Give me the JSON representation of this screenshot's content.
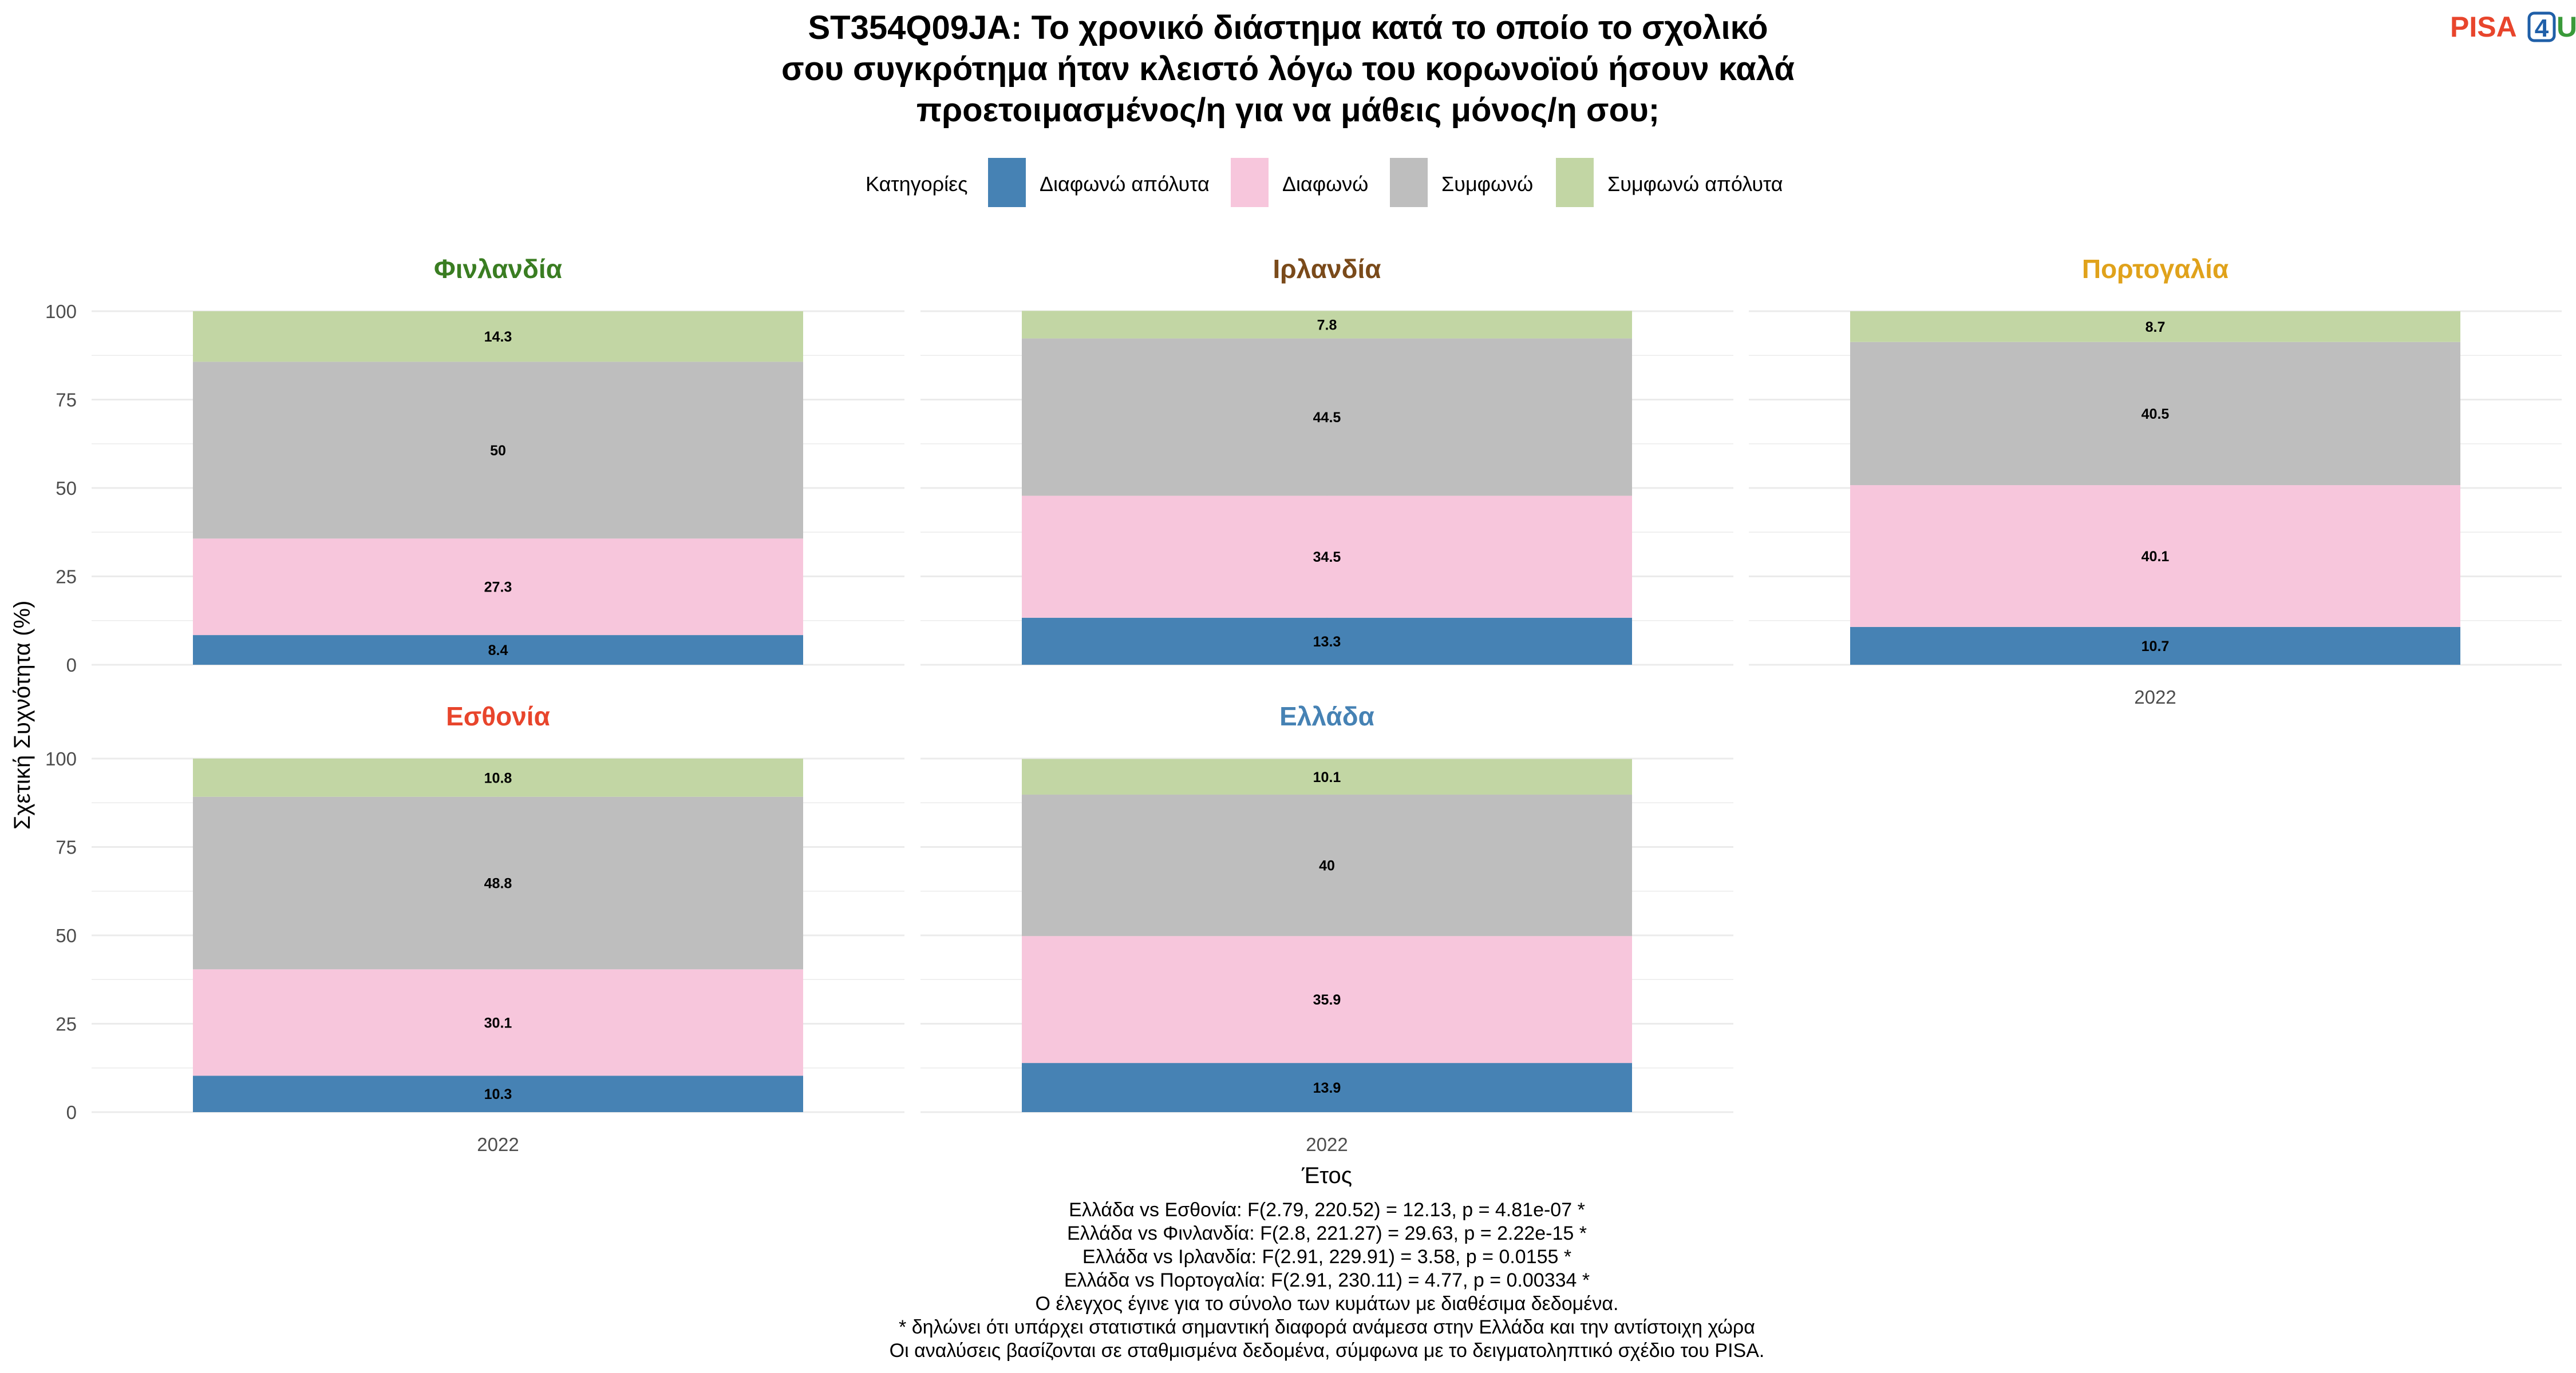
{
  "title": [
    "ST354Q09JA: Το χρονικό διάστημα κατά το οποίο το σχολικό",
    "σου συγκρότημα ήταν κλειστό λόγω του κορωνοϊού ήσουν καλά",
    "προετοιμασμένος/η για να μάθεις μόνος/η σου;"
  ],
  "logo": {
    "left": "PISA",
    "digit": "4",
    "right": "U",
    "left_color": "#e8452c",
    "digit_color": "#1f5fa8",
    "right_color": "#3a9a3a"
  },
  "legend": {
    "title": "Κατηγορίες",
    "items": [
      {
        "label": "Διαφωνώ απόλυτα",
        "color": "#4682b4"
      },
      {
        "label": "Διαφωνώ",
        "color": "#f7c6dc"
      },
      {
        "label": "Συμφωνώ",
        "color": "#bebebe"
      },
      {
        "label": "Συμφωνώ απόλυτα",
        "color": "#c2d6a4"
      }
    ]
  },
  "chart_data": {
    "type": "bar",
    "stacked": true,
    "xlabel": "Έτος",
    "ylabel": "Σχετική Συχνότητα (%)",
    "ylim": [
      0,
      100
    ],
    "yticks": [
      0,
      25,
      50,
      75,
      100
    ],
    "categories": [
      "2022"
    ],
    "series_names": [
      "Διαφωνώ απόλυτα",
      "Διαφωνώ",
      "Συμφωνώ",
      "Συμφωνώ απόλυτα"
    ],
    "panels": [
      {
        "country": "Φινλανδία",
        "color": "#3a7d22",
        "values": [
          8.4,
          27.3,
          50,
          14.3
        ]
      },
      {
        "country": "Ιρλανδία",
        "color": "#7a4a1a",
        "values": [
          13.3,
          34.5,
          44.5,
          7.8
        ]
      },
      {
        "country": "Πορτογαλία",
        "color": "#e0a21b",
        "values": [
          10.7,
          40.1,
          40.5,
          8.7
        ]
      },
      {
        "country": "Εσθονία",
        "color": "#e8452c",
        "values": [
          10.3,
          30.1,
          48.8,
          10.8
        ]
      },
      {
        "country": "Ελλάδα",
        "color": "#4682b4",
        "values": [
          13.9,
          35.9,
          40,
          10.1
        ]
      }
    ]
  },
  "footnotes": [
    "Ελλάδα vs Εσθονία: F(2.79, 220.52) = 12.13, p = 4.81e-07 *",
    "Ελλάδα vs Φινλανδία: F(2.8, 221.27) = 29.63, p = 2.22e-15 *",
    "Ελλάδα vs Ιρλανδία: F(2.91, 229.91) = 3.58, p = 0.0155 *",
    "Ελλάδα vs Πορτογαλία: F(2.91, 230.11) = 4.77, p = 0.00334 *",
    "Ο έλεγχος έγινε για το σύνολο των κυμάτων με διαθέσιμα δεδομένα.",
    "* δηλώνει ότι υπάρχει στατιστικά σημαντική διαφορά ανάμεσα στην Ελλάδα και την αντίστοιχη χώρα",
    "Οι αναλύσεις βασίζονται σε σταθμισμένα δεδομένα, σύμφωνα με το δειγματοληπτικό σχέδιο του PISA."
  ]
}
